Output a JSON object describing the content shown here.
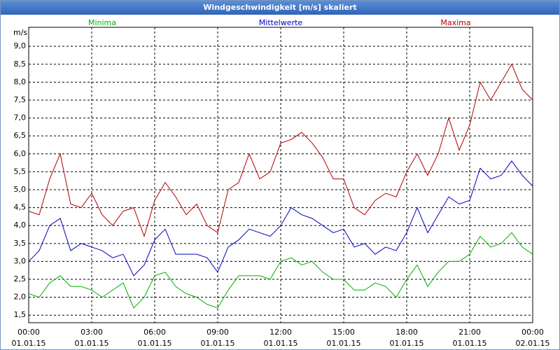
{
  "chart_data": {
    "type": "line",
    "title": "Windgeschwindigkeit [m/s] skaliert",
    "y_label": "m/s",
    "x": [
      0,
      0.5,
      1,
      1.5,
      2,
      2.5,
      3,
      3.5,
      4,
      4.5,
      5,
      5.5,
      6,
      6.5,
      7,
      7.5,
      8,
      8.5,
      9,
      9.5,
      10,
      10.5,
      11,
      11.5,
      12,
      12.5,
      13,
      13.5,
      14,
      14.5,
      15,
      15.5,
      16,
      16.5,
      17,
      17.5,
      18,
      18.5,
      19,
      19.5,
      20,
      20.5,
      21,
      21.5,
      22,
      22.5,
      23,
      23.5,
      24
    ],
    "series": [
      {
        "name": "Minima",
        "color": "#00b000",
        "values": [
          2.1,
          2.0,
          2.4,
          2.6,
          2.3,
          2.3,
          2.2,
          2.0,
          2.2,
          2.4,
          1.7,
          2.0,
          2.6,
          2.7,
          2.3,
          2.1,
          2.0,
          1.8,
          1.7,
          2.2,
          2.6,
          2.6,
          2.6,
          2.5,
          3.0,
          3.1,
          2.9,
          3.0,
          2.7,
          2.5,
          2.5,
          2.2,
          2.2,
          2.4,
          2.3,
          2.0,
          2.5,
          2.9,
          2.3,
          2.7,
          3.0,
          3.0,
          3.2,
          3.7,
          3.4,
          3.5,
          3.8,
          3.4,
          3.2
        ]
      },
      {
        "name": "Mittelwerte",
        "color": "#0000c0",
        "values": [
          3.0,
          3.3,
          4.0,
          4.2,
          3.3,
          3.5,
          3.4,
          3.3,
          3.1,
          3.2,
          2.6,
          2.9,
          3.6,
          3.9,
          3.2,
          3.2,
          3.2,
          3.1,
          2.7,
          3.4,
          3.6,
          3.9,
          3.8,
          3.7,
          4.0,
          4.5,
          4.3,
          4.2,
          4.0,
          3.8,
          3.9,
          3.4,
          3.5,
          3.2,
          3.4,
          3.3,
          3.8,
          4.5,
          3.8,
          4.3,
          4.8,
          4.6,
          4.7,
          5.6,
          5.3,
          5.4,
          5.8,
          5.4,
          5.1
        ]
      },
      {
        "name": "Maxima",
        "color": "#b00000",
        "values": [
          4.4,
          4.3,
          5.3,
          6.0,
          4.6,
          4.5,
          4.9,
          4.3,
          4.0,
          4.4,
          4.5,
          3.7,
          4.7,
          5.2,
          4.8,
          4.3,
          4.6,
          4.0,
          3.8,
          5.0,
          5.2,
          6.0,
          5.3,
          5.5,
          6.3,
          6.4,
          6.6,
          6.3,
          5.9,
          5.3,
          5.3,
          4.5,
          4.3,
          4.7,
          4.9,
          4.8,
          5.5,
          6.0,
          5.4,
          6.0,
          7.0,
          6.1,
          6.8,
          8.0,
          7.5,
          8.0,
          8.5,
          7.8,
          7.5
        ]
      }
    ],
    "xlim": [
      0,
      24
    ],
    "xticks": [
      {
        "value": 0,
        "label": "00:00\n01.01.15"
      },
      {
        "value": 3,
        "label": "03:00\n01.01.15"
      },
      {
        "value": 6,
        "label": "06:00\n01.01.15"
      },
      {
        "value": 9,
        "label": "09:00\n01.01.15"
      },
      {
        "value": 12,
        "label": "12:00\n01.01.15"
      },
      {
        "value": 15,
        "label": "15:00\n01.01.15"
      },
      {
        "value": 18,
        "label": "18:00\n01.01.15"
      },
      {
        "value": 21,
        "label": "21:00\n01.01.15"
      },
      {
        "value": 24,
        "label": "00:00\n02.01.15"
      }
    ],
    "ylim": [
      1.29,
      9.53
    ],
    "yticks": [
      {
        "value": 1.5,
        "label": "1,5"
      },
      {
        "value": 2,
        "label": "2,0"
      },
      {
        "value": 2.5,
        "label": "2,5"
      },
      {
        "value": 3,
        "label": "3,0"
      },
      {
        "value": 3.5,
        "label": "3,5"
      },
      {
        "value": 4,
        "label": "4,0"
      },
      {
        "value": 4.5,
        "label": "4,5"
      },
      {
        "value": 5,
        "label": "5,0"
      },
      {
        "value": 5.5,
        "label": "5,5"
      },
      {
        "value": 6,
        "label": "6,0"
      },
      {
        "value": 6.5,
        "label": "6,5"
      },
      {
        "value": 7,
        "label": "7,0"
      },
      {
        "value": 7.5,
        "label": "7,5"
      },
      {
        "value": 8,
        "label": "8,0"
      },
      {
        "value": 8.5,
        "label": "8,5"
      },
      {
        "value": 9,
        "label": "9,0"
      }
    ],
    "grid": true
  }
}
